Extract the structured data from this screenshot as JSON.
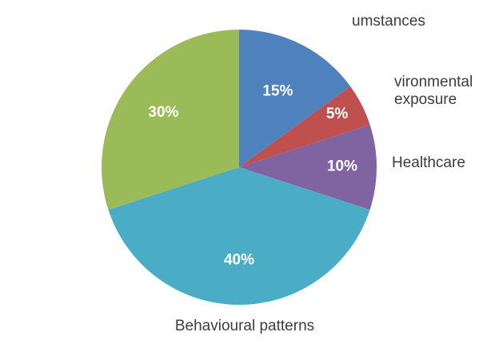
{
  "chart_data": {
    "type": "pie",
    "title": "",
    "slices": [
      {
        "name": "umstances",
        "value": 15,
        "percent_label": "15%",
        "color": "#4f81bd"
      },
      {
        "name": "vironmental exposure",
        "name_lines": [
          "vironmental",
          "exposure"
        ],
        "value": 5,
        "percent_label": "5%",
        "color": "#c0504d"
      },
      {
        "name": "Healthcare",
        "value": 10,
        "percent_label": "10%",
        "color": "#8064a2"
      },
      {
        "name": "Behavioural patterns",
        "value": 40,
        "percent_label": "40%",
        "color": "#4bacc6"
      },
      {
        "name": "",
        "value": 30,
        "percent_label": "30%",
        "color": "#9bbb59"
      }
    ],
    "start": "12 o'clock, clockwise"
  }
}
